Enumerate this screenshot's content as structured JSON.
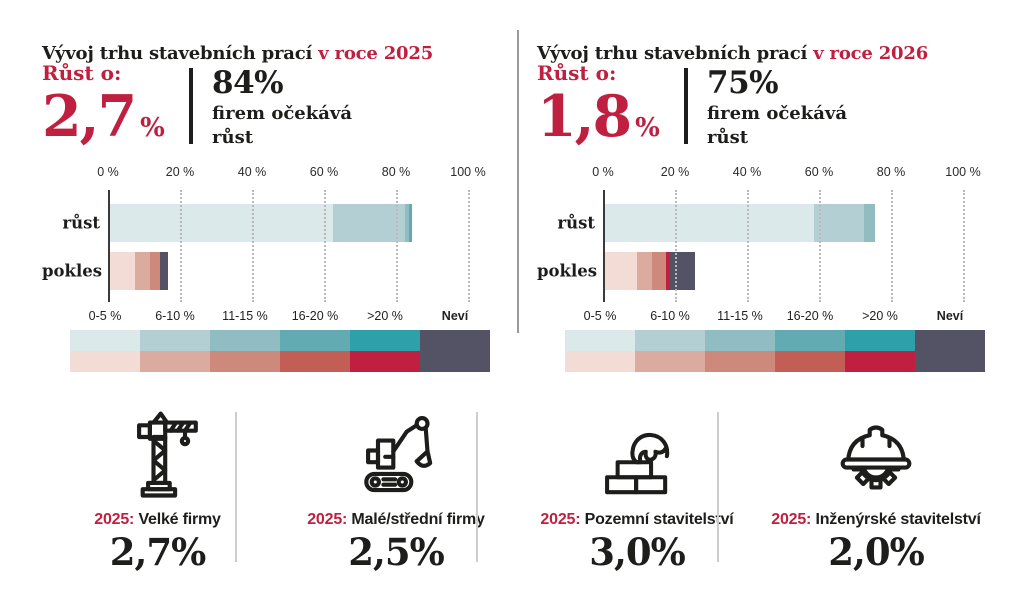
{
  "colors": {
    "accent_red": "#c0203f",
    "text_dark": "#1d1d1b",
    "nevi": "#545366",
    "growth_shades": [
      "#dce9ea",
      "#b4cfd3",
      "#90bcc2",
      "#63abb2",
      "#2da0a9"
    ],
    "decline_shades": [
      "#f3dcd5",
      "#dcaba0",
      "#cd897b",
      "#c25e56",
      "#c01f3f"
    ]
  },
  "axis": {
    "tick_values": [
      0,
      20,
      40,
      60,
      80,
      100
    ],
    "tick_labels": [
      "0 %",
      "20 %",
      "40 %",
      "60 %",
      "80 %",
      "100 %"
    ]
  },
  "legend": {
    "labels": [
      "0-5 %",
      "6-10 %",
      "11-15 %",
      "16-20 %",
      ">20 %",
      "Neví"
    ]
  },
  "panels": [
    {
      "title_black": "Vývoj trhu stavebních prací",
      "title_red": "v roce 2025",
      "growth_label": "Růst o:",
      "growth_value": "2,7",
      "growth_unit": "%",
      "share_value": "84%",
      "share_line1": "firem očekává",
      "share_line2": "růst"
    },
    {
      "title_black": "Vývoj trhu stavebních prací",
      "title_red": "v roce 2026",
      "growth_label": "Růst o:",
      "growth_value": "1,8",
      "growth_unit": "%",
      "share_value": "75%",
      "share_line1": "firem očekává",
      "share_line2": "růst"
    }
  ],
  "chart_data": [
    {
      "type": "bar",
      "orientation": "horizontal-stacked",
      "title": "Vývoj trhu stavebních prací v roce 2025",
      "annotations": {
        "rust_o": "2,7 %",
        "share_expecting_growth": "84% firem očekává růst"
      },
      "categories": [
        "růst",
        "pokles"
      ],
      "xlim": [
        0,
        100
      ],
      "xticks": [
        0,
        20,
        40,
        60,
        80,
        100
      ],
      "grid": "dotted-vertical",
      "series": [
        {
          "name": "0-5 %",
          "values": [
            62,
            7
          ]
        },
        {
          "name": "6-10 %",
          "values": [
            20,
            4
          ]
        },
        {
          "name": "11-15 %",
          "values": [
            1,
            3
          ]
        },
        {
          "name": "16-20 %",
          "values": [
            1,
            0
          ]
        },
        {
          "name": ">20 %",
          "values": [
            0,
            0
          ]
        },
        {
          "name": "Neví",
          "values": [
            0,
            2
          ]
        }
      ],
      "totals": {
        "růst": 84,
        "pokles_vč_neví": 16
      }
    },
    {
      "type": "bar",
      "orientation": "horizontal-stacked",
      "title": "Vývoj trhu stavebních prací v roce 2026",
      "annotations": {
        "rust_o": "1,8 %",
        "share_expecting_growth": "75% firem očekává růst"
      },
      "categories": [
        "růst",
        "pokles"
      ],
      "xlim": [
        0,
        100
      ],
      "xticks": [
        0,
        20,
        40,
        60,
        80,
        100
      ],
      "grid": "dotted-vertical",
      "series": [
        {
          "name": "0-5 %",
          "values": [
            58,
            9
          ]
        },
        {
          "name": "6-10 %",
          "values": [
            14,
            4
          ]
        },
        {
          "name": "11-15 %",
          "values": [
            3,
            4
          ]
        },
        {
          "name": "16-20 %",
          "values": [
            0,
            0
          ]
        },
        {
          "name": ">20 %",
          "values": [
            0,
            1
          ]
        },
        {
          "name": "Neví",
          "values": [
            0,
            7
          ]
        }
      ],
      "totals": {
        "růst": 75,
        "pokles_vč_neví": 25
      }
    }
  ],
  "cards": [
    {
      "icon": "tower-crane",
      "year": "2025:",
      "label": "Velké firmy",
      "value": "2,7%"
    },
    {
      "icon": "excavator",
      "year": "2025:",
      "label": "Malé/střední firmy",
      "value": "2,5%"
    },
    {
      "icon": "bricklaying-hand",
      "year": "2025:",
      "label": "Pozemní stavitelství",
      "value": "3,0%"
    },
    {
      "icon": "helmet-gear",
      "year": "2025:",
      "label": "Inženýrské stavitelství",
      "value": "2,0%"
    }
  ]
}
